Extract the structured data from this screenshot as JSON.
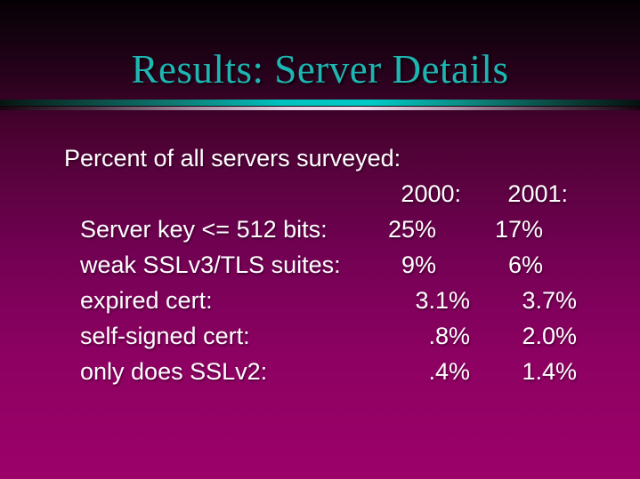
{
  "slide": {
    "title": "Results: Server Details",
    "intro": "Percent of all servers surveyed:",
    "table": {
      "columns": [
        "2000:",
        "2001:"
      ],
      "rows": [
        {
          "label": "Server key <= 512 bits:",
          "y2000": "25%",
          "y2001": "17%"
        },
        {
          "label": "weak SSLv3/TLS suites:",
          "y2000": "9%",
          "y2001": "6%"
        },
        {
          "label": "expired cert:",
          "y2000": "3.1%",
          "y2001": "3.7%"
        },
        {
          "label": "self-signed cert:",
          "y2000": ".8%",
          "y2001": "2.0%"
        },
        {
          "label": "only does SSLv2:",
          "y2000": ".4%",
          "y2001": "1.4%"
        }
      ]
    },
    "colors": {
      "title_text": "#1eb6b2",
      "body_text": "#ffffff",
      "background_top": "#060104",
      "background_bottom": "#9c016a",
      "divider_cyan": "#00cac6",
      "divider_pink": "#f4dff0"
    }
  }
}
